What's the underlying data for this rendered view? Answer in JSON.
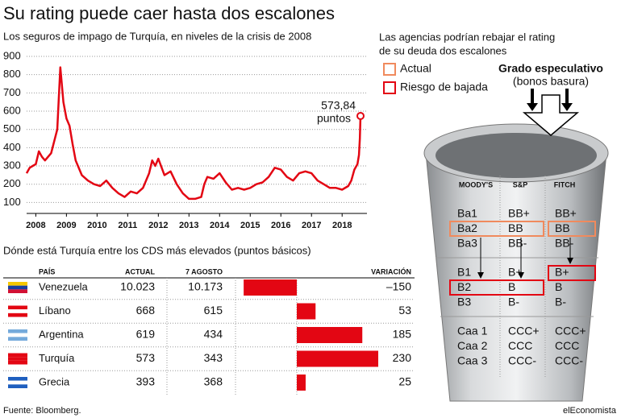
{
  "title": "Su rating puede caer hasta dos escalones",
  "chart_data": [
    {
      "type": "line",
      "subtitle": "Los seguros de impago de Turquía, en niveles de la crisis de 2008",
      "x": [
        2007.7,
        2007.8,
        2007.9,
        2008.0,
        2008.1,
        2008.2,
        2008.3,
        2008.5,
        2008.7,
        2008.8,
        2008.9,
        2009.0,
        2009.1,
        2009.2,
        2009.3,
        2009.5,
        2009.7,
        2009.9,
        2010.1,
        2010.3,
        2010.5,
        2010.7,
        2010.9,
        2011.1,
        2011.3,
        2011.5,
        2011.7,
        2011.8,
        2011.9,
        2012.0,
        2012.2,
        2012.4,
        2012.6,
        2012.8,
        2013.0,
        2013.2,
        2013.4,
        2013.5,
        2013.6,
        2013.8,
        2014.0,
        2014.2,
        2014.4,
        2014.6,
        2014.8,
        2015.0,
        2015.2,
        2015.4,
        2015.6,
        2015.8,
        2016.0,
        2016.2,
        2016.4,
        2016.6,
        2016.8,
        2017.0,
        2017.2,
        2017.4,
        2017.6,
        2017.8,
        2018.0,
        2018.2,
        2018.3,
        2018.4,
        2018.5,
        2018.55,
        2018.58,
        2018.6
      ],
      "values": [
        260,
        290,
        300,
        310,
        380,
        350,
        330,
        370,
        500,
        840,
        650,
        560,
        520,
        420,
        330,
        250,
        220,
        200,
        190,
        220,
        180,
        150,
        130,
        160,
        150,
        180,
        260,
        330,
        300,
        340,
        250,
        270,
        200,
        150,
        120,
        120,
        130,
        200,
        240,
        230,
        260,
        210,
        170,
        180,
        170,
        180,
        200,
        210,
        240,
        290,
        280,
        240,
        220,
        260,
        270,
        260,
        220,
        200,
        180,
        180,
        170,
        190,
        220,
        280,
        310,
        360,
        450,
        573.84
      ],
      "end_label": "573,84",
      "end_unit": "puntos",
      "color": "#e30613",
      "xlim": [
        2007.7,
        2018.6
      ],
      "xticks": [
        2008,
        2009,
        2010,
        2011,
        2012,
        2013,
        2014,
        2015,
        2016,
        2017,
        2018
      ],
      "ylim": [
        40,
        900
      ],
      "yticks": [
        100,
        200,
        300,
        400,
        500,
        600,
        700,
        800,
        900
      ],
      "grid": true
    },
    {
      "type": "hbar",
      "subtitle": "Dónde está Turquía entre los CDS más elevados (puntos básicos)",
      "columns": [
        "PAÍS",
        "ACTUAL",
        "7 AGOSTO",
        "VARIACIÓN"
      ],
      "categories": [
        "Venezuela",
        "Líbano",
        "Argentina",
        "Turquía",
        "Grecia"
      ],
      "actual": [
        "10.023",
        "668",
        "619",
        "573",
        "393"
      ],
      "august": [
        "10.173",
        "615",
        "434",
        "343",
        "368"
      ],
      "values": [
        -150,
        53,
        185,
        230,
        25
      ],
      "value_labels": [
        "–150",
        "53",
        "185",
        "230",
        "25"
      ],
      "color": "#e30613"
    }
  ],
  "ratings": {
    "intro": [
      "Las agencias podrían rebajar el rating",
      "de su deuda dos escalones"
    ],
    "legend": [
      {
        "label": "Actual",
        "color": "#f08a5d"
      },
      {
        "label": "Riesgo de bajada",
        "color": "#e30613"
      }
    ],
    "grade_title": "Grado especulativo",
    "grade_sub": "(bonos basura)",
    "columns": [
      "MOODY'S",
      "S&P",
      "FITCH"
    ],
    "groups": [
      [
        [
          "Ba1",
          "BB+",
          "BB+"
        ],
        [
          "Ba2",
          "BB",
          "BB"
        ],
        [
          "Ba3",
          "BB-",
          "BB-"
        ]
      ],
      [
        [
          "B1",
          "B+",
          "B+"
        ],
        [
          "B2",
          "B",
          "B"
        ],
        [
          "B3",
          "B-",
          "B-"
        ]
      ],
      [
        [
          "Caa 1",
          "CCC+",
          "CCC+"
        ],
        [
          "Caa 2",
          "CCC",
          "CCC"
        ],
        [
          "Caa 3",
          "CCC-",
          "CCC-"
        ]
      ]
    ]
  },
  "source": "Fuente: Bloomberg.",
  "brand": "elEconomista"
}
